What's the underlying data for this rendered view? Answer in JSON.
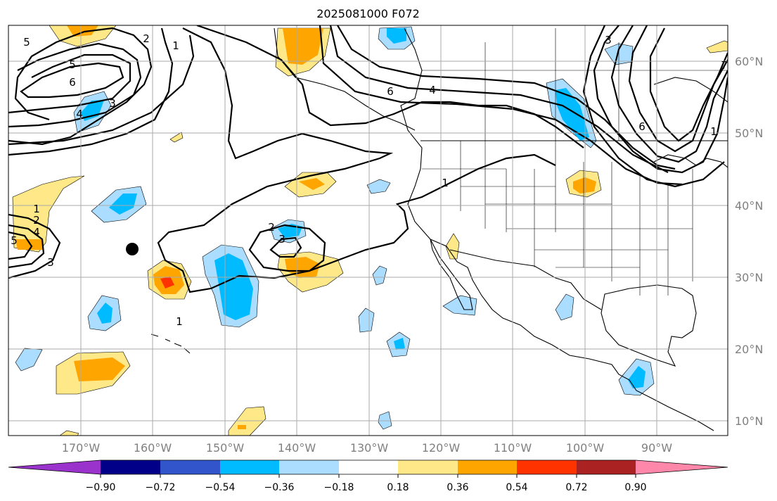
{
  "title": "2025081000 F072",
  "lat_labels": [
    "60°N",
    "50°N",
    "40°N",
    "30°N",
    "20°N",
    "10°N"
  ],
  "lon_labels": [
    "170°W",
    "160°W",
    "150°W",
    "140°W",
    "130°W",
    "120°W",
    "110°W",
    "100°W",
    "90°W"
  ],
  "colorbar": {
    "colors": [
      "#9933cc",
      "#000088",
      "#3355cc",
      "#00bbff",
      "#aaddff",
      "#ffffff",
      "#ffe888",
      "#ffa500",
      "#ff3300",
      "#aa2222",
      "#ff88aa"
    ],
    "tick_labels": [
      "−0.90",
      "−0.72",
      "−0.54",
      "−0.36",
      "−0.18",
      "0.18",
      "0.36",
      "0.54",
      "0.72",
      "0.90"
    ]
  },
  "contour_labels": [
    "5",
    "6",
    "4",
    "3",
    "2",
    "1",
    "1",
    "5",
    "6",
    "4",
    "1",
    "6",
    "3",
    "7",
    "1",
    "2",
    "4",
    "5",
    "3",
    "2",
    "3",
    "1"
  ],
  "colors": {
    "pos_light": "#ffe888",
    "pos_mid": "#ffa500",
    "pos_high": "#ff3300",
    "neg_light": "#aaddff",
    "neg_mid": "#00bbff",
    "grid": "#aaaaaa"
  }
}
